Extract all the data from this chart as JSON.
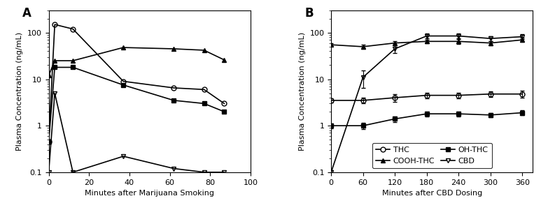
{
  "panel_A": {
    "xlabel": "Minutes after Marijuana Smoking",
    "ylabel": "Plasma Concentration (ng/mL)",
    "label": "A",
    "xlim": [
      0,
      100
    ],
    "ylim": [
      0.1,
      300
    ],
    "xticks": [
      0,
      20,
      40,
      60,
      80,
      100
    ],
    "series": {
      "THC": {
        "x": [
          0,
          3,
          12,
          37,
          62,
          77,
          87
        ],
        "y": [
          0.45,
          150,
          120,
          9.0,
          6.5,
          6.0,
          3.0
        ],
        "marker": "o",
        "fillstyle": "none"
      },
      "OH-THC": {
        "x": [
          0,
          3,
          12,
          37,
          62,
          77,
          87
        ],
        "y": [
          0.45,
          18,
          18,
          7.5,
          3.5,
          3.0,
          2.0
        ],
        "marker": "s",
        "fillstyle": "full"
      },
      "COOH-THC": {
        "x": [
          0,
          3,
          12,
          37,
          62,
          77,
          87
        ],
        "y": [
          12,
          25,
          25,
          48,
          45,
          42,
          26
        ],
        "marker": "^",
        "fillstyle": "full"
      },
      "CBD": {
        "x": [
          0,
          3,
          12,
          37,
          62,
          77,
          87
        ],
        "y": [
          0.1,
          5.0,
          0.1,
          0.22,
          0.12,
          0.1,
          0.1
        ],
        "marker": "v",
        "fillstyle": "none"
      }
    }
  },
  "panel_B": {
    "xlabel": "Minutes after CBD Dosing",
    "ylabel": "Plasma Concentration (ng/mL)",
    "label": "B",
    "xlim": [
      0,
      380
    ],
    "ylim": [
      0.1,
      300
    ],
    "xticks": [
      0,
      60,
      120,
      180,
      240,
      300,
      360
    ],
    "series": {
      "THC": {
        "x": [
          0,
          60,
          120,
          180,
          240,
          300,
          360
        ],
        "y": [
          3.5,
          3.5,
          4.0,
          4.5,
          4.5,
          4.8,
          4.8
        ],
        "yerr": [
          0.4,
          0.5,
          0.7,
          0.6,
          0.6,
          0.7,
          0.8
        ],
        "marker": "o",
        "fillstyle": "none"
      },
      "OH-THC": {
        "x": [
          0,
          60,
          120,
          180,
          240,
          300,
          360
        ],
        "y": [
          1.0,
          1.0,
          1.4,
          1.8,
          1.8,
          1.7,
          1.9
        ],
        "yerr": [
          0.12,
          0.15,
          0.2,
          0.22,
          0.2,
          0.2,
          0.22
        ],
        "marker": "s",
        "fillstyle": "full"
      },
      "COOH-THC": {
        "x": [
          0,
          60,
          120,
          180,
          240,
          300,
          360
        ],
        "y": [
          55,
          50,
          60,
          65,
          65,
          60,
          70
        ],
        "yerr": [
          4,
          5,
          5,
          6,
          7,
          6,
          7
        ],
        "marker": "^",
        "fillstyle": "full"
      },
      "CBD": {
        "x": [
          0,
          60,
          120,
          180,
          240,
          300,
          360
        ],
        "y": [
          0.1,
          11,
          45,
          85,
          85,
          75,
          82
        ],
        "yerr": [
          0.01,
          4.5,
          9.0,
          10,
          10,
          9,
          10
        ],
        "marker": "v",
        "fillstyle": "none"
      }
    }
  },
  "legend_items": [
    {
      "key": "THC",
      "marker": "o",
      "fillstyle": "none",
      "label": "THC"
    },
    {
      "key": "COOH-THC",
      "marker": "^",
      "fillstyle": "full",
      "label": "COOH-THC"
    },
    {
      "key": "OH-THC",
      "marker": "s",
      "fillstyle": "full",
      "label": "OH-THC"
    },
    {
      "key": "CBD",
      "marker": "v",
      "fillstyle": "none",
      "label": "CBD"
    }
  ],
  "markersize": 5,
  "linewidth": 1.2,
  "fontsize_label": 8,
  "fontsize_tick": 8,
  "fontsize_panel": 12,
  "fontsize_legend": 8
}
